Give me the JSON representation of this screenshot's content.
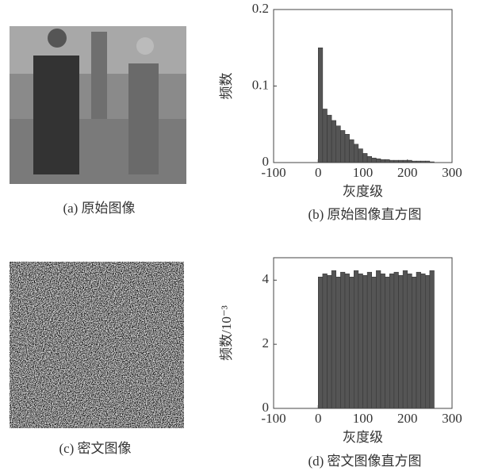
{
  "captions": [
    "(a) 原始图像",
    "(b) 原始图像直方图",
    "(c) 密文图像",
    "(d) 密文图像直方图"
  ],
  "chart_data": [
    {
      "type": "histogram",
      "ylabel": "频数",
      "xlabel": "灰度级",
      "bins": [
        0,
        10,
        20,
        30,
        40,
        50,
        60,
        70,
        80,
        90,
        100,
        110,
        120,
        130,
        140,
        150,
        160,
        170,
        180,
        190,
        200,
        210,
        220,
        230,
        240,
        250,
        260
      ],
      "values": [
        0.15,
        0.07,
        0.062,
        0.055,
        0.048,
        0.042,
        0.037,
        0.03,
        0.024,
        0.018,
        0.012,
        0.008,
        0.006,
        0.005,
        0.004,
        0.004,
        0.003,
        0.003,
        0.003,
        0.003,
        0.003,
        0.002,
        0.002,
        0.002,
        0.002,
        0.001
      ],
      "color": "#555555",
      "xlim": [
        -100,
        300
      ],
      "xticks": [
        -100,
        0,
        100,
        200,
        300
      ],
      "ylim": [
        0,
        0.2
      ],
      "yticks": [
        0,
        0.1,
        0.2
      ]
    },
    {
      "type": "histogram",
      "ylabel": "频数/10⁻³",
      "xlabel": "灰度级",
      "bins": [
        0,
        10,
        20,
        30,
        40,
        50,
        60,
        70,
        80,
        90,
        100,
        110,
        120,
        130,
        140,
        150,
        160,
        170,
        180,
        190,
        200,
        210,
        220,
        230,
        240,
        250,
        260
      ],
      "values": [
        4.1,
        4.2,
        4.15,
        4.3,
        4.1,
        4.25,
        4.2,
        4.1,
        4.3,
        4.2,
        4.15,
        4.25,
        4.1,
        4.3,
        4.2,
        4.1,
        4.2,
        4.25,
        4.15,
        4.3,
        4.2,
        4.1,
        4.25,
        4.2,
        4.15,
        4.3
      ],
      "color": "#555555",
      "xlim": [
        -100,
        300
      ],
      "xticks": [
        -100,
        0,
        100,
        200,
        300
      ],
      "ylim": [
        0,
        4.7
      ],
      "yticks": [
        0,
        2,
        4
      ]
    }
  ]
}
